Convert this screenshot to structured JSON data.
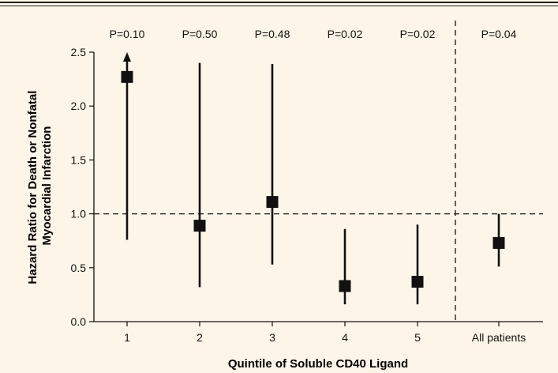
{
  "chart_data": {
    "type": "scatter",
    "title": "",
    "xlabel": "Quintile of Soluble CD40 Ligand",
    "ylabel_lines": [
      "Hazard Ratio for Death or Nonfatal",
      "Myocardial Infarction"
    ],
    "categories": [
      "1",
      "2",
      "3",
      "4",
      "5",
      "All patients"
    ],
    "p_values": [
      "P=0.10",
      "P=0.50",
      "P=0.48",
      "P=0.02",
      "P=0.02",
      "P=0.04"
    ],
    "series": [
      {
        "hazard_ratio": [
          2.27,
          0.89,
          1.11,
          0.33,
          0.37,
          0.73
        ],
        "ci_lower": [
          0.76,
          0.32,
          0.53,
          0.16,
          0.16,
          0.51
        ],
        "ci_upper": [
          2.5,
          2.4,
          2.39,
          0.86,
          0.9,
          1.0
        ],
        "ci_upper_truncated": [
          true,
          false,
          false,
          false,
          false,
          false
        ]
      }
    ],
    "ylim": [
      0.0,
      2.5
    ],
    "yticks": [
      "0.0",
      "0.5",
      "1.0",
      "1.5",
      "2.0",
      "2.5"
    ],
    "reference_line": 1.0,
    "separator_before_category": "All patients",
    "grid": false,
    "colors": {
      "background": "#fdf6e8",
      "marks": "#111111"
    }
  }
}
